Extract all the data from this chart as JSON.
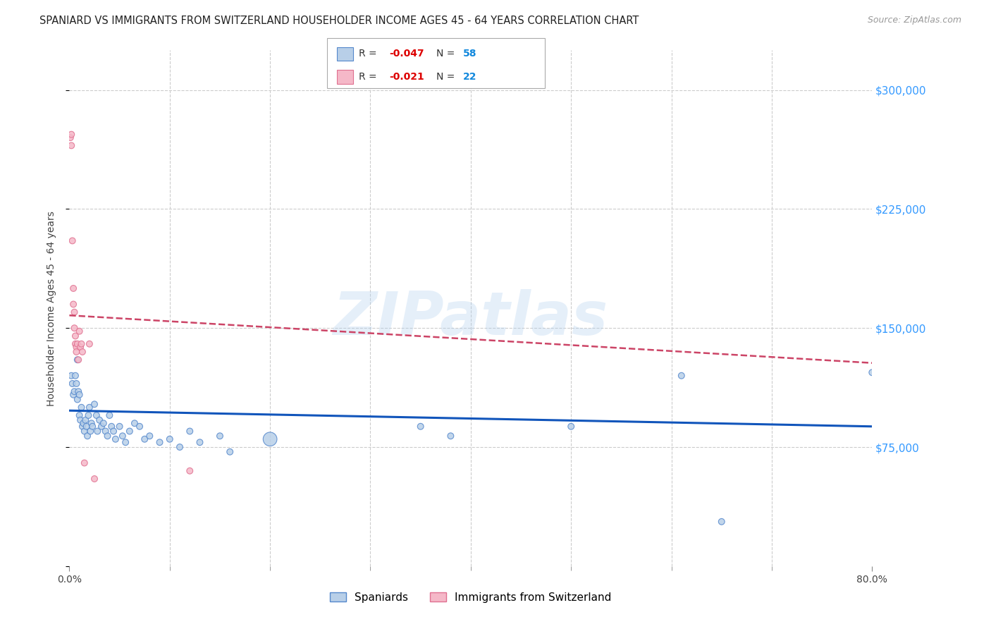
{
  "title": "SPANIARD VS IMMIGRANTS FROM SWITZERLAND HOUSEHOLDER INCOME AGES 45 - 64 YEARS CORRELATION CHART",
  "source": "Source: ZipAtlas.com",
  "ylabel": "Householder Income Ages 45 - 64 years",
  "watermark": "ZIPatlas",
  "background_color": "#ffffff",
  "xmin": 0.0,
  "xmax": 0.8,
  "ymin": 0,
  "ymax": 325000,
  "yticks": [
    0,
    75000,
    150000,
    225000,
    300000
  ],
  "xtick_major": [
    0.0,
    0.8
  ],
  "xtick_minor": [
    0.1,
    0.2,
    0.3,
    0.4,
    0.5,
    0.6,
    0.7
  ],
  "grid_color": "#cccccc",
  "blue_series": {
    "label": "Spaniards",
    "R": -0.047,
    "N": 58,
    "face_color": "#b8cfe8",
    "edge_color": "#5588cc",
    "trend_color": "#1155bb",
    "trend_style": "solid",
    "trend_y0": 98000,
    "trend_y1": 88000,
    "x": [
      0.002,
      0.003,
      0.004,
      0.005,
      0.006,
      0.007,
      0.008,
      0.008,
      0.009,
      0.01,
      0.01,
      0.011,
      0.012,
      0.013,
      0.014,
      0.015,
      0.016,
      0.017,
      0.018,
      0.019,
      0.02,
      0.021,
      0.022,
      0.023,
      0.025,
      0.027,
      0.028,
      0.03,
      0.032,
      0.034,
      0.036,
      0.038,
      0.04,
      0.042,
      0.044,
      0.046,
      0.05,
      0.053,
      0.056,
      0.06,
      0.065,
      0.07,
      0.075,
      0.08,
      0.09,
      0.1,
      0.11,
      0.12,
      0.13,
      0.15,
      0.16,
      0.2,
      0.35,
      0.38,
      0.5,
      0.61,
      0.65,
      0.8
    ],
    "y": [
      120000,
      115000,
      108000,
      110000,
      120000,
      115000,
      130000,
      105000,
      110000,
      108000,
      95000,
      92000,
      100000,
      88000,
      90000,
      85000,
      92000,
      88000,
      82000,
      95000,
      100000,
      85000,
      90000,
      88000,
      102000,
      95000,
      85000,
      92000,
      88000,
      90000,
      85000,
      82000,
      95000,
      88000,
      85000,
      80000,
      88000,
      82000,
      78000,
      85000,
      90000,
      88000,
      80000,
      82000,
      78000,
      80000,
      75000,
      85000,
      78000,
      82000,
      72000,
      80000,
      88000,
      82000,
      88000,
      120000,
      28000,
      122000
    ],
    "sizes": [
      40,
      40,
      40,
      40,
      40,
      40,
      40,
      40,
      40,
      40,
      40,
      40,
      40,
      40,
      40,
      40,
      40,
      40,
      40,
      40,
      40,
      40,
      40,
      40,
      40,
      40,
      40,
      40,
      40,
      40,
      40,
      40,
      40,
      40,
      40,
      40,
      40,
      40,
      40,
      40,
      40,
      40,
      40,
      40,
      40,
      40,
      40,
      40,
      40,
      40,
      40,
      200,
      40,
      40,
      40,
      40,
      40,
      40
    ]
  },
  "pink_series": {
    "label": "Immigrants from Switzerland",
    "R": -0.021,
    "N": 22,
    "face_color": "#f5b8c8",
    "edge_color": "#e07090",
    "trend_color": "#cc4466",
    "trend_style": "dashed",
    "trend_y0": 158000,
    "trend_y1": 128000,
    "x": [
      0.001,
      0.002,
      0.002,
      0.003,
      0.004,
      0.004,
      0.005,
      0.005,
      0.006,
      0.006,
      0.007,
      0.007,
      0.008,
      0.009,
      0.01,
      0.011,
      0.012,
      0.013,
      0.015,
      0.02,
      0.025,
      0.12
    ],
    "y": [
      270000,
      272000,
      265000,
      205000,
      175000,
      165000,
      160000,
      150000,
      145000,
      140000,
      138000,
      135000,
      140000,
      130000,
      148000,
      138000,
      140000,
      135000,
      65000,
      140000,
      55000,
      60000
    ],
    "sizes": [
      40,
      40,
      40,
      40,
      40,
      40,
      40,
      40,
      40,
      40,
      40,
      40,
      40,
      40,
      40,
      40,
      40,
      40,
      40,
      40,
      40,
      40
    ]
  },
  "legend_R_color": "#dd0000",
  "legend_N_color": "#1188dd",
  "legend_label_color": "#333333",
  "title_color": "#222222",
  "title_fontsize": 10.5,
  "axis_label_color": "#444444",
  "tick_label_color_right": "#3399ff",
  "source_color": "#999999"
}
